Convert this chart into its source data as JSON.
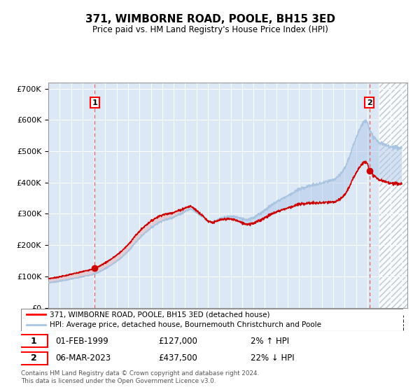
{
  "title": "371, WIMBORNE ROAD, POOLE, BH15 3ED",
  "subtitle": "Price paid vs. HM Land Registry's House Price Index (HPI)",
  "legend_line1": "371, WIMBORNE ROAD, POOLE, BH15 3ED (detached house)",
  "legend_line2": "HPI: Average price, detached house, Bournemouth Christchurch and Poole",
  "footnote": "Contains HM Land Registry data © Crown copyright and database right 2024.\nThis data is licensed under the Open Government Licence v3.0.",
  "sale1_date": "01-FEB-1999",
  "sale1_price": "£127,000",
  "sale1_hpi": "2% ↑ HPI",
  "sale2_date": "06-MAR-2023",
  "sale2_price": "£437,500",
  "sale2_hpi": "22% ↓ HPI",
  "hpi_color": "#a8c4e0",
  "price_color": "#cc0000",
  "plot_bg_color": "#dce8f5",
  "ylim": [
    0,
    720000
  ],
  "yticks": [
    0,
    100000,
    200000,
    300000,
    400000,
    500000,
    600000,
    700000
  ],
  "sale1_x": 1999.083,
  "sale1_y": 127000,
  "sale2_x": 2023.17,
  "sale2_y": 437500,
  "xmin": 1995,
  "xmax": 2026.5,
  "hatch_start": 2024.0
}
